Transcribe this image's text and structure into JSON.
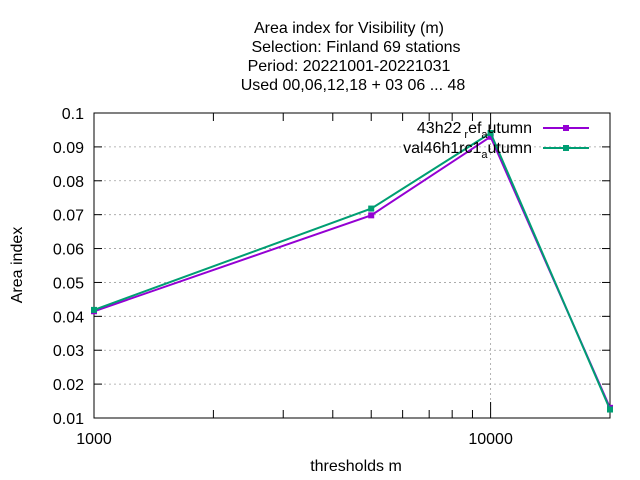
{
  "chart_data": {
    "type": "line",
    "title_lines": [
      "Area index  for Visibility (m)",
      "Selection: Finland     69 stations",
      "Period: 20221001-20221031",
      "Used  00,06,12,18  + 03 06 ... 48"
    ],
    "xlabel": "thresholds m",
    "ylabel": "Area index",
    "x_scale": "log",
    "xlim": [
      1000,
      20000
    ],
    "ylim": [
      0.01,
      0.1
    ],
    "x_ticks": [
      1000,
      10000
    ],
    "x_tick_labels": [
      "1000",
      "10000"
    ],
    "y_ticks": [
      0.01,
      0.02,
      0.03,
      0.04,
      0.05,
      0.06,
      0.07,
      0.08,
      0.09,
      0.1
    ],
    "y_tick_labels": [
      "0.01",
      "0.02",
      "0.03",
      "0.04",
      "0.05",
      "0.06",
      "0.07",
      "0.08",
      "0.09",
      "0.1"
    ],
    "grid": true,
    "legend_position": "top-right",
    "series": [
      {
        "name": "43h22_ref_autumn",
        "legend_parts": [
          "43h22",
          "r",
          "ef",
          "a",
          "utumn"
        ],
        "color": "#9400d3",
        "x": [
          1000,
          5000,
          10000,
          20000
        ],
        "y": [
          0.0415,
          0.0698,
          0.093,
          0.013
        ]
      },
      {
        "name": "val46h1rc1_autumn",
        "legend_parts": [
          "val46h1rc1",
          "a",
          "utumn"
        ],
        "color": "#009e73",
        "x": [
          1000,
          5000,
          10000,
          20000
        ],
        "y": [
          0.0419,
          0.0718,
          0.0941,
          0.0125
        ]
      }
    ]
  }
}
